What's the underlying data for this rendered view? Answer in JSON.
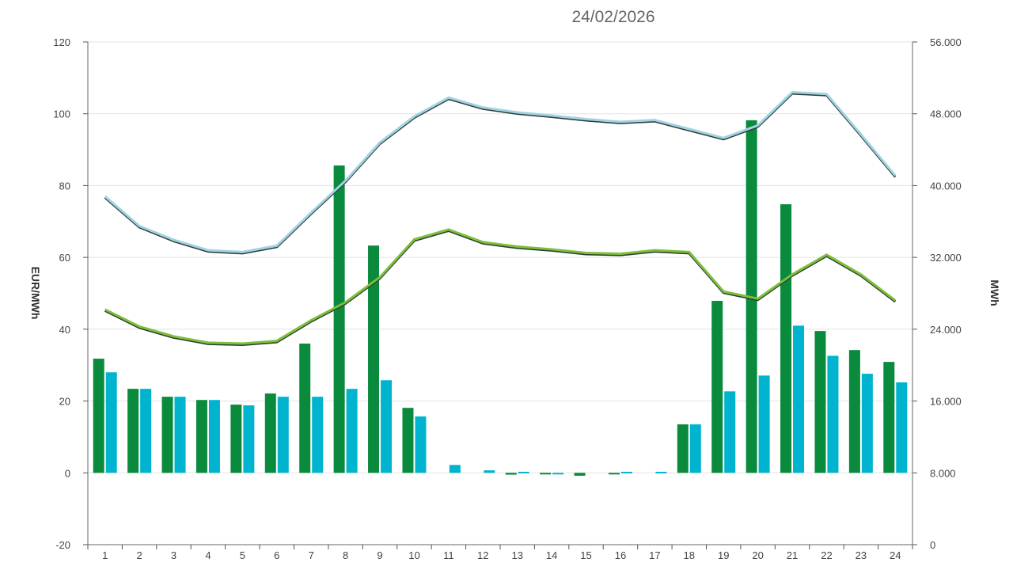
{
  "chart_data": {
    "type": "bar",
    "title": "24/02/2026",
    "xlabel": "",
    "ylabel": "EUR/MWh",
    "y2label": "MWh",
    "ylim": [
      -20,
      120
    ],
    "y2lim": [
      0,
      56000
    ],
    "grid": true,
    "categories": [
      "1",
      "2",
      "3",
      "4",
      "5",
      "6",
      "7",
      "8",
      "9",
      "10",
      "11",
      "12",
      "13",
      "14",
      "15",
      "16",
      "17",
      "18",
      "19",
      "20",
      "21",
      "22",
      "23",
      "24"
    ],
    "yticks": [
      "-20",
      "0",
      "20",
      "40",
      "60",
      "80",
      "100",
      "120"
    ],
    "y2ticks": [
      "0",
      "8.000",
      "16.000",
      "24.000",
      "32.000",
      "40.000",
      "48.000",
      "56.000"
    ],
    "series": [
      {
        "type": "bar",
        "axis": "left",
        "color": "#0a8a3c",
        "values": [
          31.8,
          23.4,
          21.2,
          20.3,
          19.0,
          22.1,
          36.0,
          85.6,
          63.3,
          18.1,
          0,
          0,
          -0.5,
          -0.2,
          -0.8,
          -0.3,
          0,
          13.5,
          47.9,
          98.2,
          74.8,
          39.5,
          34.2,
          30.9
        ]
      },
      {
        "type": "bar",
        "axis": "left",
        "color": "#00b4d0",
        "values": [
          28.0,
          23.4,
          21.2,
          20.3,
          18.8,
          21.2,
          21.2,
          23.4,
          25.8,
          15.7,
          2.2,
          0.7,
          0.3,
          -0.2,
          0,
          0.3,
          0.3,
          13.5,
          22.7,
          27.1,
          41.0,
          32.6,
          27.6,
          25.2
        ]
      },
      {
        "type": "line",
        "axis": "right",
        "color": "#9fd3e3",
        "values": [
          38800,
          35500,
          33950,
          32800,
          32600,
          33300,
          37000,
          40550,
          44800,
          47700,
          49800,
          48700,
          48150,
          47800,
          47400,
          47100,
          47300,
          46300,
          45300,
          46700,
          50400,
          50200,
          45700,
          41100
        ]
      },
      {
        "type": "line",
        "axis": "right",
        "color": "#7cbf3a",
        "values": [
          26200,
          24300,
          23200,
          22500,
          22400,
          22700,
          25000,
          27000,
          29800,
          34000,
          35100,
          33700,
          33200,
          32900,
          32500,
          32400,
          32800,
          32600,
          28200,
          27400,
          30100,
          32300,
          30100,
          27200
        ]
      }
    ]
  }
}
